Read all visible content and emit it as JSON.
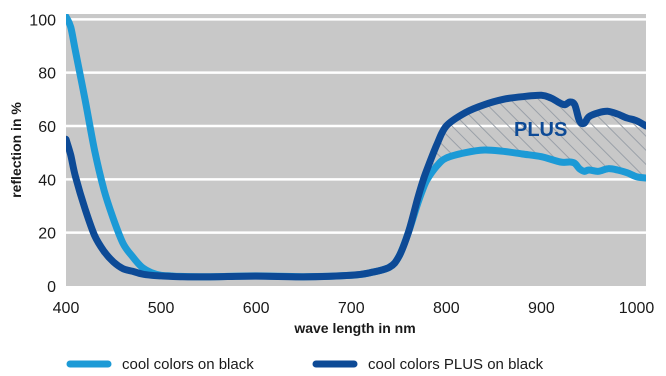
{
  "chart_data": {
    "type": "line",
    "xlabel": "wave length in nm",
    "ylabel": "reflection in %",
    "xlim": [
      400,
      1010
    ],
    "ylim": [
      0,
      102
    ],
    "x_ticks": [
      "400",
      "500",
      "600",
      "700",
      "800",
      "900",
      "1000"
    ],
    "y_ticks": [
      "0",
      "20",
      "40",
      "60",
      "80",
      "100"
    ],
    "grid": true,
    "legend_position": "bottom",
    "annotation": "PLUS",
    "colors": {
      "background": "#c8c8c8",
      "grid": "#ffffff",
      "hatch": "#9aa0a8"
    },
    "series": [
      {
        "name": "cool colors on black",
        "color": "#1c9ad6",
        "x": [
          400,
          405,
          410,
          420,
          430,
          440,
          450,
          460,
          470,
          480,
          490,
          500,
          510,
          520,
          550,
          600,
          650,
          700,
          720,
          740,
          750,
          760,
          770,
          775,
          780,
          790,
          800,
          820,
          840,
          860,
          880,
          900,
          920,
          930,
          935,
          940,
          945,
          950,
          960,
          970,
          980,
          990,
          1000,
          1010
        ],
        "y": [
          101,
          97,
          88,
          70,
          51,
          36,
          25,
          16,
          11,
          7,
          5,
          4,
          3.8,
          3.6,
          3.5,
          3.8,
          3.5,
          4,
          5,
          7,
          11,
          20,
          31,
          36,
          40,
          45,
          48,
          50,
          51,
          50.5,
          49.5,
          48.5,
          46.5,
          46.5,
          46,
          44,
          43,
          43.5,
          43,
          44,
          43.5,
          42.5,
          41,
          40.5
        ]
      },
      {
        "name": "cool colors PLUS on black",
        "color": "#0d4a96",
        "x": [
          400,
          405,
          410,
          420,
          430,
          440,
          450,
          460,
          470,
          480,
          490,
          500,
          510,
          520,
          550,
          600,
          650,
          700,
          720,
          740,
          750,
          760,
          770,
          775,
          780,
          790,
          800,
          820,
          840,
          860,
          880,
          900,
          910,
          920,
          925,
          930,
          935,
          940,
          945,
          950,
          960,
          970,
          980,
          990,
          1000,
          1010
        ],
        "y": [
          55,
          49,
          41,
          29,
          19,
          13,
          9,
          6.5,
          5.5,
          4.5,
          4,
          3.8,
          3.6,
          3.5,
          3.4,
          3.7,
          3.4,
          4,
          5,
          7,
          11,
          20,
          33,
          39,
          44,
          53,
          60,
          65,
          68,
          70,
          71,
          71.5,
          70.5,
          68.5,
          68,
          69,
          68,
          62,
          61,
          63.5,
          65,
          65.5,
          64.5,
          63,
          62,
          60
        ]
      }
    ]
  }
}
